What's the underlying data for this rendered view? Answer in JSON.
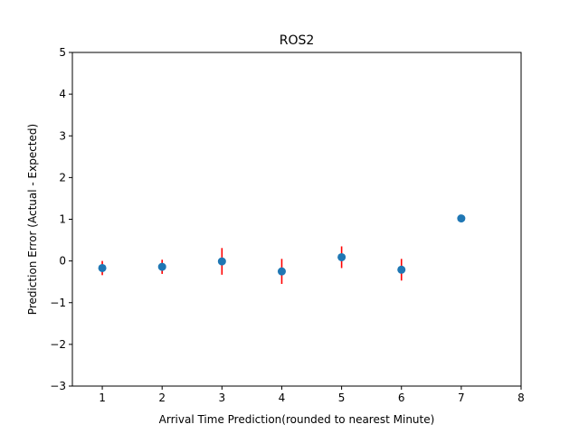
{
  "chart_data": {
    "type": "scatter",
    "title": "ROS2",
    "xlabel": "Arrival Time Prediction(rounded to nearest Minute)",
    "ylabel": "Prediction Error (Actual - Expected)",
    "xlim": [
      0.5,
      8
    ],
    "ylim": [
      -3,
      5
    ],
    "xticks": [
      1,
      2,
      3,
      4,
      5,
      6,
      7,
      8
    ],
    "yticks": [
      -3,
      -2,
      -1,
      0,
      1,
      2,
      3,
      4,
      5
    ],
    "xtick_labels": [
      "1",
      "2",
      "3",
      "4",
      "5",
      "6",
      "7",
      "8"
    ],
    "ytick_labels": [
      "−3",
      "−2",
      "−1",
      "0",
      "1",
      "2",
      "3",
      "4",
      "5"
    ],
    "grid": false,
    "points": [
      {
        "x": 1,
        "y": -0.17,
        "err": 0.17
      },
      {
        "x": 2,
        "y": -0.14,
        "err": 0.17
      },
      {
        "x": 3,
        "y": -0.01,
        "err": 0.32
      },
      {
        "x": 4,
        "y": -0.25,
        "err": 0.3
      },
      {
        "x": 5,
        "y": 0.09,
        "err": 0.26
      },
      {
        "x": 6,
        "y": -0.21,
        "err": 0.26
      },
      {
        "x": 7,
        "y": 1.02,
        "err": 0
      }
    ],
    "marker_color": "#1f77b4",
    "errorbar_color": "#ff0000"
  }
}
